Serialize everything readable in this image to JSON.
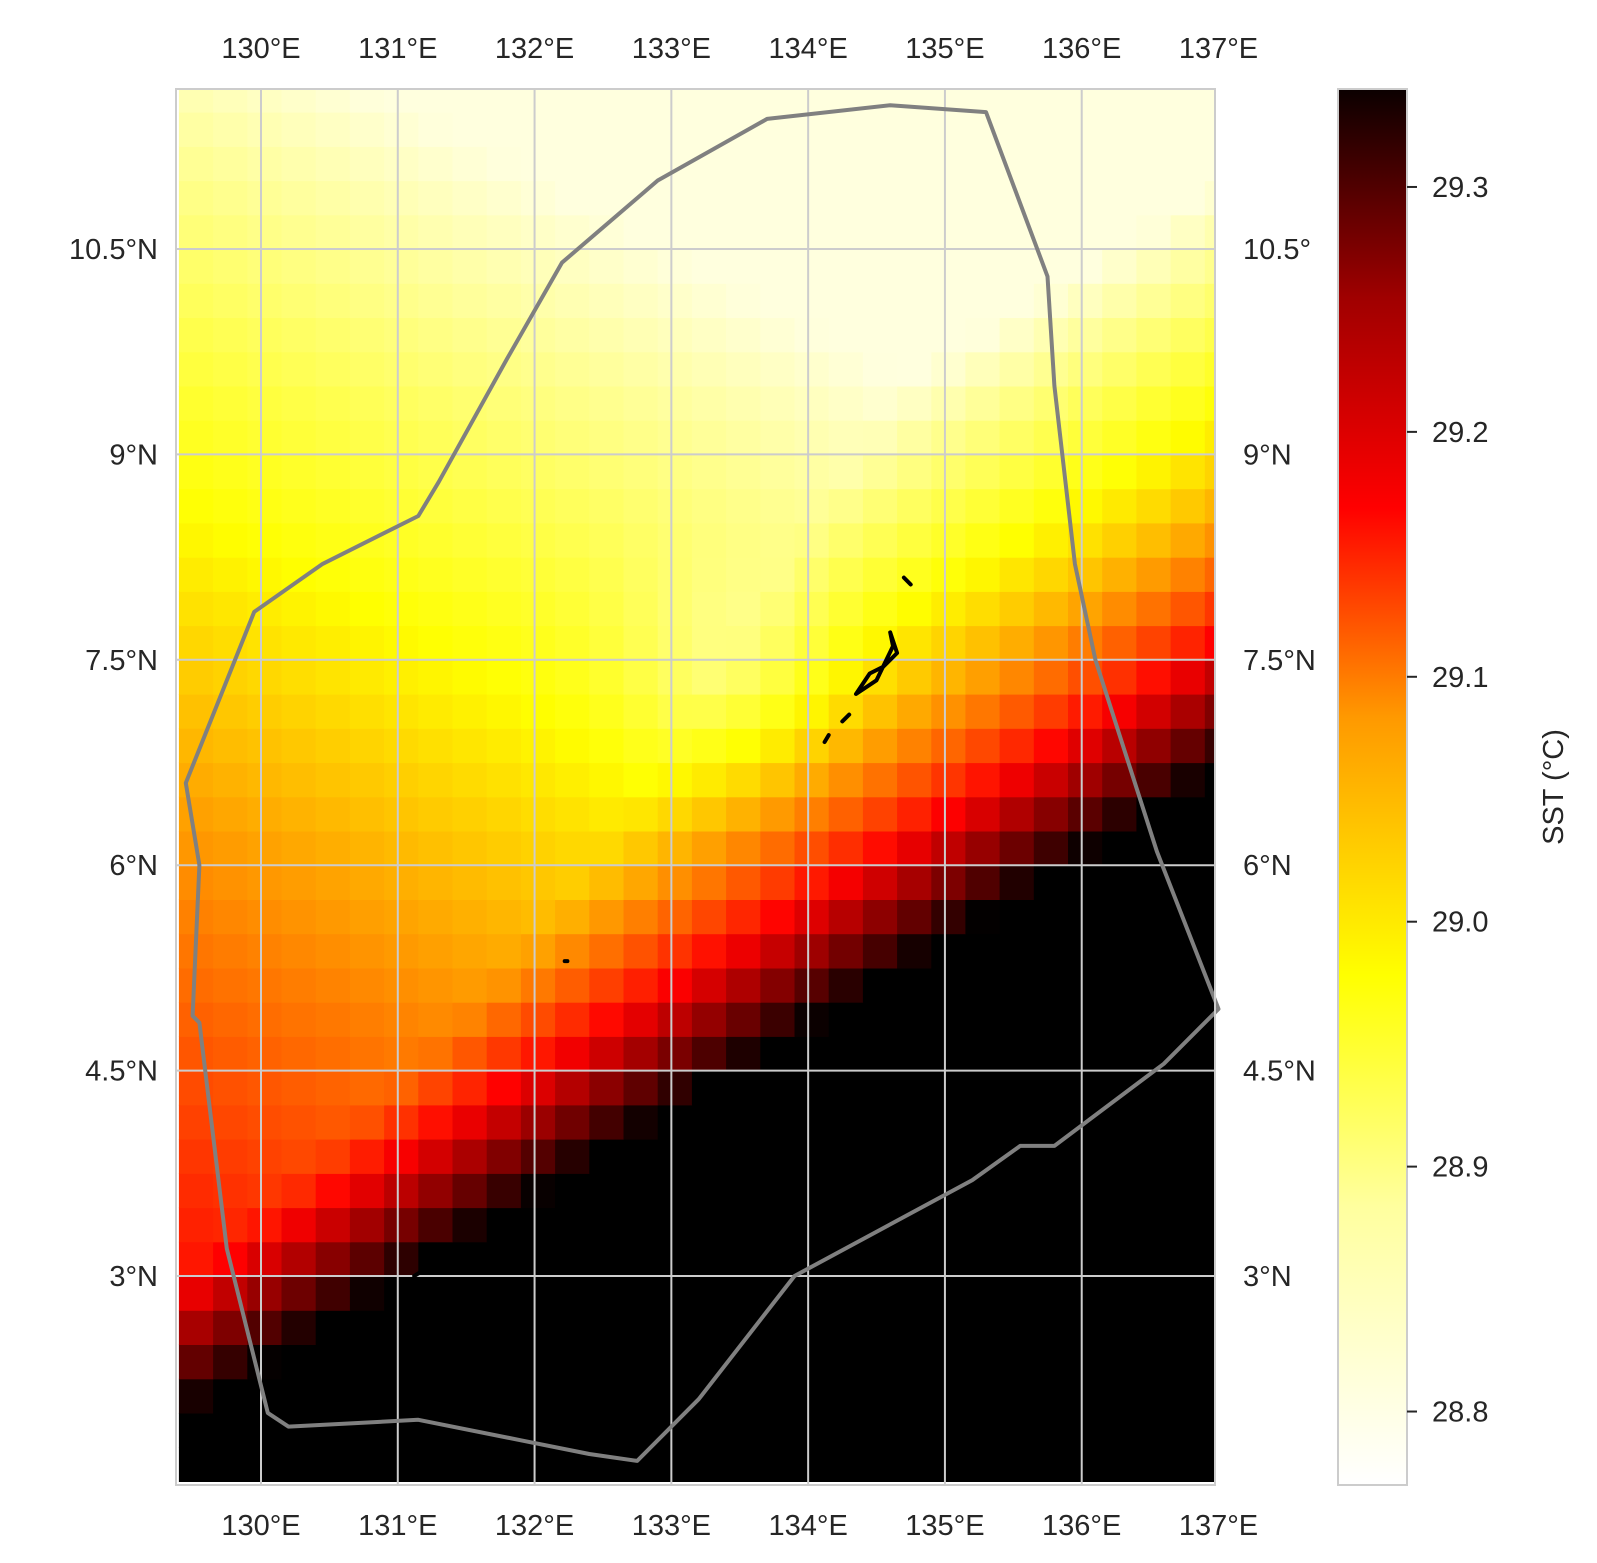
{
  "map": {
    "lon_range": [
      129.4,
      137.0
    ],
    "lat_range": [
      1.6,
      11.75
    ],
    "lon_ticks": [
      {
        "value": 130,
        "label": "130°E"
      },
      {
        "value": 131,
        "label": "131°E"
      },
      {
        "value": 132,
        "label": "132°E"
      },
      {
        "value": 133,
        "label": "133°E"
      },
      {
        "value": 134,
        "label": "134°E"
      },
      {
        "value": 135,
        "label": "135°E"
      },
      {
        "value": 136,
        "label": "136°E"
      },
      {
        "value": 137,
        "label": "137°E"
      }
    ],
    "lat_ticks": [
      {
        "value": 3,
        "label": "3°N"
      },
      {
        "value": 4.5,
        "label": "4.5°N"
      },
      {
        "value": 6,
        "label": "6°N"
      },
      {
        "value": 7.5,
        "label": "7.5°N"
      },
      {
        "value": 9,
        "label": "9°N"
      },
      {
        "value": 10.5,
        "label": "10.5°N"
      }
    ],
    "right_lat_labels": [
      "3°N",
      "4.5°N",
      "6°N",
      "7.5°N",
      "9°N",
      "10.5°"
    ],
    "grid": true,
    "field": "sea surface temperature",
    "colormap": "hot_r",
    "grid_cell_deg": 0.25,
    "eez_boundary_color": "#808080",
    "eez_boundary": [
      [
        129.45,
        6.6
      ],
      [
        129.55,
        6.0
      ],
      [
        129.5,
        4.9
      ],
      [
        129.55,
        4.85
      ],
      [
        129.75,
        3.2
      ],
      [
        130.05,
        2.0
      ],
      [
        130.2,
        1.9
      ],
      [
        131.15,
        1.95
      ],
      [
        131.9,
        1.8
      ],
      [
        132.4,
        1.7
      ],
      [
        132.75,
        1.65
      ],
      [
        133.2,
        2.1
      ],
      [
        133.9,
        3.0
      ],
      [
        135.2,
        3.7
      ],
      [
        135.55,
        3.95
      ],
      [
        135.8,
        3.95
      ],
      [
        136.6,
        4.55
      ],
      [
        137.0,
        4.95
      ],
      [
        136.55,
        6.1
      ],
      [
        136.1,
        7.5
      ],
      [
        135.95,
        8.2
      ],
      [
        135.8,
        9.5
      ],
      [
        135.75,
        10.3
      ],
      [
        135.3,
        11.5
      ],
      [
        134.6,
        11.55
      ],
      [
        133.7,
        11.45
      ],
      [
        132.9,
        11.0
      ],
      [
        132.2,
        10.4
      ],
      [
        131.8,
        9.7
      ],
      [
        131.3,
        8.8
      ],
      [
        131.15,
        8.55
      ],
      [
        130.45,
        8.2
      ],
      [
        129.95,
        7.85
      ]
    ],
    "islands": [
      {
        "name": "",
        "points": [
          [
            134.7,
            8.1
          ],
          [
            134.75,
            8.05
          ]
        ]
      },
      {
        "name": "",
        "points": [
          [
            134.6,
            7.7
          ],
          [
            134.65,
            7.55
          ],
          [
            134.55,
            7.45
          ],
          [
            134.45,
            7.4
          ],
          [
            134.35,
            7.25
          ],
          [
            134.5,
            7.35
          ],
          [
            134.62,
            7.6
          ],
          [
            134.6,
            7.7
          ]
        ]
      },
      {
        "name": "",
        "points": [
          [
            134.25,
            7.05
          ],
          [
            134.3,
            7.1
          ]
        ]
      },
      {
        "name": "",
        "points": [
          [
            134.12,
            6.9
          ],
          [
            134.15,
            6.95
          ]
        ]
      },
      {
        "name": "",
        "points": [
          [
            132.22,
            5.3
          ],
          [
            132.24,
            5.3
          ]
        ]
      },
      {
        "name": "",
        "points": [
          [
            131.12,
            3.0
          ],
          [
            131.2,
            3.05
          ]
        ]
      },
      {
        "name": "",
        "points": [
          [
            131.78,
            2.95
          ],
          [
            131.82,
            2.97
          ]
        ]
      }
    ]
  },
  "colorbar": {
    "label": "SST (°C)",
    "vmin": 28.77,
    "vmax": 29.34,
    "ticks": [
      "28.8",
      "28.9",
      "29.0",
      "29.1",
      "29.2",
      "29.3"
    ]
  }
}
